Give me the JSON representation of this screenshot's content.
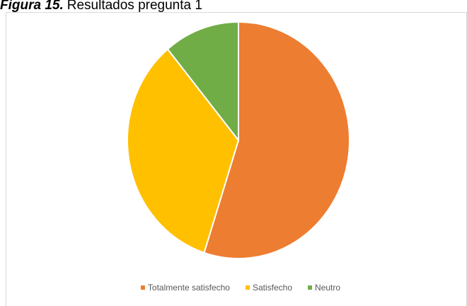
{
  "chart_data": {
    "type": "pie",
    "figure_label": "Figura 15.",
    "title": "Resultados pregunta 1",
    "categories": [
      "Totalmente satisfecho",
      "Satisfecho",
      "Neutro"
    ],
    "values": [
      55,
      34,
      11
    ],
    "colors": [
      "#ed7d31",
      "#ffc000",
      "#70ad47"
    ],
    "legend": "bottom"
  }
}
